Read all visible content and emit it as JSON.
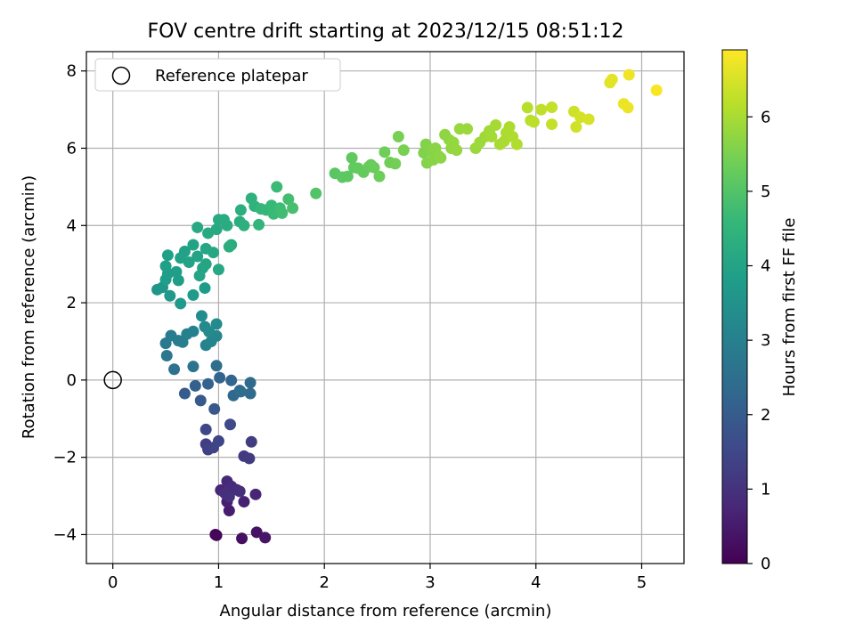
{
  "chart_data": {
    "type": "scatter",
    "title": "FOV centre drift starting at 2023/12/15 08:51:12",
    "xlabel": "Angular distance from reference (arcmin)",
    "ylabel": "Rotation from reference (arcmin)",
    "xlim": [
      -0.25,
      5.4
    ],
    "ylim": [
      -4.75,
      8.5
    ],
    "xticks": [
      0,
      1,
      2,
      3,
      4,
      5
    ],
    "yticks": [
      -4,
      -2,
      0,
      2,
      4,
      6,
      8
    ],
    "grid": true,
    "legend": {
      "placement": "upper-left",
      "entries": [
        "Reference platepar"
      ]
    },
    "reference_point": {
      "x": 0,
      "y": 0,
      "marker": "hollow-circle"
    },
    "colorbar": {
      "label": "Hours from first FF file",
      "colormap": "viridis",
      "range": [
        0,
        6.9
      ],
      "ticks": [
        0,
        1,
        2,
        3,
        4,
        5,
        6
      ]
    },
    "points": [
      {
        "x": 0.97,
        "y": -4.0,
        "c": 0.05
      },
      {
        "x": 0.98,
        "y": -4.02,
        "c": 0.1
      },
      {
        "x": 1.22,
        "y": -4.1,
        "c": 0.3
      },
      {
        "x": 1.36,
        "y": -3.94,
        "c": 0.35
      },
      {
        "x": 1.44,
        "y": -4.08,
        "c": 0.4
      },
      {
        "x": 1.1,
        "y": -3.38,
        "c": 0.55
      },
      {
        "x": 1.08,
        "y": -3.15,
        "c": 0.6
      },
      {
        "x": 1.24,
        "y": -3.15,
        "c": 0.65
      },
      {
        "x": 1.35,
        "y": -2.96,
        "c": 0.7
      },
      {
        "x": 1.02,
        "y": -2.85,
        "c": 0.75
      },
      {
        "x": 1.08,
        "y": -2.62,
        "c": 0.8
      },
      {
        "x": 1.12,
        "y": -2.75,
        "c": 0.85
      },
      {
        "x": 1.17,
        "y": -2.84,
        "c": 0.9
      },
      {
        "x": 1.2,
        "y": -2.88,
        "c": 0.92
      },
      {
        "x": 1.06,
        "y": -2.93,
        "c": 0.95
      },
      {
        "x": 1.1,
        "y": -3.02,
        "c": 0.97
      },
      {
        "x": 1.24,
        "y": -1.97,
        "c": 1.15
      },
      {
        "x": 1.29,
        "y": -2.03,
        "c": 1.2
      },
      {
        "x": 1.31,
        "y": -1.6,
        "c": 1.25
      },
      {
        "x": 0.88,
        "y": -1.66,
        "c": 1.3
      },
      {
        "x": 0.9,
        "y": -1.8,
        "c": 1.35
      },
      {
        "x": 0.95,
        "y": -1.75,
        "c": 1.4
      },
      {
        "x": 1.0,
        "y": -1.58,
        "c": 1.45
      },
      {
        "x": 0.88,
        "y": -1.28,
        "c": 1.5
      },
      {
        "x": 1.11,
        "y": -1.15,
        "c": 1.55
      },
      {
        "x": 0.96,
        "y": -0.75,
        "c": 1.9
      },
      {
        "x": 0.83,
        "y": -0.53,
        "c": 1.95
      },
      {
        "x": 0.68,
        "y": -0.35,
        "c": 2.0
      },
      {
        "x": 0.78,
        "y": -0.15,
        "c": 2.1
      },
      {
        "x": 0.9,
        "y": -0.1,
        "c": 2.15
      },
      {
        "x": 1.01,
        "y": 0.06,
        "c": 2.2
      },
      {
        "x": 1.12,
        "y": -0.01,
        "c": 2.25
      },
      {
        "x": 1.14,
        "y": -0.4,
        "c": 2.3
      },
      {
        "x": 1.2,
        "y": -0.27,
        "c": 2.35
      },
      {
        "x": 1.3,
        "y": -0.35,
        "c": 2.38
      },
      {
        "x": 1.3,
        "y": -0.07,
        "c": 2.4
      },
      {
        "x": 1.21,
        "y": -0.3,
        "c": 2.42
      },
      {
        "x": 0.98,
        "y": 0.37,
        "c": 2.5
      },
      {
        "x": 0.58,
        "y": 0.28,
        "c": 2.6
      },
      {
        "x": 0.76,
        "y": 0.35,
        "c": 2.65
      },
      {
        "x": 0.51,
        "y": 0.63,
        "c": 2.75
      },
      {
        "x": 0.5,
        "y": 0.95,
        "c": 2.8
      },
      {
        "x": 0.55,
        "y": 1.15,
        "c": 2.85
      },
      {
        "x": 0.62,
        "y": 1.02,
        "c": 2.9
      },
      {
        "x": 0.66,
        "y": 0.98,
        "c": 2.95
      },
      {
        "x": 0.7,
        "y": 1.19,
        "c": 3.0
      },
      {
        "x": 0.76,
        "y": 1.26,
        "c": 3.05
      },
      {
        "x": 0.88,
        "y": 0.9,
        "c": 3.1
      },
      {
        "x": 0.93,
        "y": 1.0,
        "c": 3.15
      },
      {
        "x": 0.98,
        "y": 1.14,
        "c": 3.2
      },
      {
        "x": 0.87,
        "y": 1.38,
        "c": 3.25
      },
      {
        "x": 0.91,
        "y": 1.25,
        "c": 3.28
      },
      {
        "x": 0.98,
        "y": 1.45,
        "c": 3.3
      },
      {
        "x": 0.84,
        "y": 1.66,
        "c": 3.35
      },
      {
        "x": 0.42,
        "y": 2.34,
        "c": 3.6
      },
      {
        "x": 0.47,
        "y": 2.4,
        "c": 3.65
      },
      {
        "x": 0.54,
        "y": 2.18,
        "c": 3.7
      },
      {
        "x": 0.64,
        "y": 1.98,
        "c": 3.72
      },
      {
        "x": 0.76,
        "y": 2.2,
        "c": 3.75
      },
      {
        "x": 0.87,
        "y": 2.38,
        "c": 3.78
      },
      {
        "x": 0.62,
        "y": 2.58,
        "c": 3.8
      },
      {
        "x": 0.5,
        "y": 2.6,
        "c": 3.82
      },
      {
        "x": 0.52,
        "y": 2.75,
        "c": 3.84
      },
      {
        "x": 0.6,
        "y": 2.8,
        "c": 3.86
      },
      {
        "x": 0.5,
        "y": 2.95,
        "c": 3.88
      },
      {
        "x": 0.52,
        "y": 3.23,
        "c": 3.9
      },
      {
        "x": 0.64,
        "y": 3.16,
        "c": 3.92
      },
      {
        "x": 0.68,
        "y": 3.33,
        "c": 3.94
      },
      {
        "x": 0.72,
        "y": 3.05,
        "c": 3.96
      },
      {
        "x": 0.76,
        "y": 3.5,
        "c": 3.98
      },
      {
        "x": 0.8,
        "y": 3.2,
        "c": 4.0
      },
      {
        "x": 0.85,
        "y": 2.9,
        "c": 4.02
      },
      {
        "x": 0.82,
        "y": 2.7,
        "c": 4.04
      },
      {
        "x": 0.88,
        "y": 3.0,
        "c": 4.06
      },
      {
        "x": 0.88,
        "y": 3.4,
        "c": 4.08
      },
      {
        "x": 0.95,
        "y": 3.3,
        "c": 4.1
      },
      {
        "x": 1.0,
        "y": 2.86,
        "c": 4.12
      },
      {
        "x": 0.8,
        "y": 3.95,
        "c": 4.14
      },
      {
        "x": 0.9,
        "y": 3.8,
        "c": 4.16
      },
      {
        "x": 0.98,
        "y": 3.9,
        "c": 4.18
      },
      {
        "x": 1.0,
        "y": 4.15,
        "c": 4.2
      },
      {
        "x": 1.05,
        "y": 4.15,
        "c": 4.22
      },
      {
        "x": 1.08,
        "y": 4.0,
        "c": 4.24
      },
      {
        "x": 1.12,
        "y": 3.5,
        "c": 4.26
      },
      {
        "x": 1.1,
        "y": 3.45,
        "c": 4.28
      },
      {
        "x": 1.2,
        "y": 4.1,
        "c": 4.3
      },
      {
        "x": 1.21,
        "y": 4.4,
        "c": 4.32
      },
      {
        "x": 1.24,
        "y": 4.0,
        "c": 4.34
      },
      {
        "x": 1.31,
        "y": 4.7,
        "c": 4.4
      },
      {
        "x": 1.34,
        "y": 4.5,
        "c": 4.45
      },
      {
        "x": 1.38,
        "y": 4.02,
        "c": 4.5
      },
      {
        "x": 1.4,
        "y": 4.43,
        "c": 4.55
      },
      {
        "x": 1.45,
        "y": 4.4,
        "c": 4.6
      },
      {
        "x": 1.5,
        "y": 4.52,
        "c": 4.62
      },
      {
        "x": 1.52,
        "y": 4.3,
        "c": 4.65
      },
      {
        "x": 1.55,
        "y": 5.0,
        "c": 4.7
      },
      {
        "x": 1.58,
        "y": 4.45,
        "c": 4.72
      },
      {
        "x": 1.6,
        "y": 4.32,
        "c": 4.75
      },
      {
        "x": 1.66,
        "y": 4.68,
        "c": 4.8
      },
      {
        "x": 1.7,
        "y": 4.45,
        "c": 4.85
      },
      {
        "x": 1.92,
        "y": 4.83,
        "c": 5.0
      },
      {
        "x": 2.1,
        "y": 5.35,
        "c": 5.1
      },
      {
        "x": 2.17,
        "y": 5.25,
        "c": 5.12
      },
      {
        "x": 2.22,
        "y": 5.27,
        "c": 5.14
      },
      {
        "x": 2.26,
        "y": 5.75,
        "c": 5.18
      },
      {
        "x": 2.28,
        "y": 5.5,
        "c": 5.2
      },
      {
        "x": 2.32,
        "y": 5.48,
        "c": 5.22
      },
      {
        "x": 2.37,
        "y": 5.38,
        "c": 5.24
      },
      {
        "x": 2.42,
        "y": 5.52,
        "c": 5.26
      },
      {
        "x": 2.44,
        "y": 5.57,
        "c": 5.28
      },
      {
        "x": 2.47,
        "y": 5.5,
        "c": 5.3
      },
      {
        "x": 2.52,
        "y": 5.27,
        "c": 5.32
      },
      {
        "x": 2.57,
        "y": 5.9,
        "c": 5.36
      },
      {
        "x": 2.62,
        "y": 5.63,
        "c": 5.38
      },
      {
        "x": 2.67,
        "y": 5.6,
        "c": 5.4
      },
      {
        "x": 2.7,
        "y": 6.3,
        "c": 5.45
      },
      {
        "x": 2.75,
        "y": 5.95,
        "c": 5.48
      },
      {
        "x": 2.94,
        "y": 5.88,
        "c": 5.55
      },
      {
        "x": 2.96,
        "y": 6.1,
        "c": 5.58
      },
      {
        "x": 2.97,
        "y": 5.62,
        "c": 5.6
      },
      {
        "x": 3.0,
        "y": 5.95,
        "c": 5.62
      },
      {
        "x": 3.03,
        "y": 5.7,
        "c": 5.64
      },
      {
        "x": 3.05,
        "y": 6.0,
        "c": 5.66
      },
      {
        "x": 3.08,
        "y": 5.8,
        "c": 5.68
      },
      {
        "x": 3.1,
        "y": 5.75,
        "c": 5.7
      },
      {
        "x": 3.14,
        "y": 6.35,
        "c": 5.72
      },
      {
        "x": 3.18,
        "y": 6.22,
        "c": 5.74
      },
      {
        "x": 3.2,
        "y": 6.0,
        "c": 5.76
      },
      {
        "x": 3.22,
        "y": 6.15,
        "c": 5.78
      },
      {
        "x": 3.25,
        "y": 5.95,
        "c": 5.8
      },
      {
        "x": 3.28,
        "y": 6.5,
        "c": 5.82
      },
      {
        "x": 3.35,
        "y": 6.5,
        "c": 5.84
      },
      {
        "x": 3.43,
        "y": 6.0,
        "c": 5.86
      },
      {
        "x": 3.47,
        "y": 6.15,
        "c": 5.88
      },
      {
        "x": 3.52,
        "y": 6.3,
        "c": 5.9
      },
      {
        "x": 3.56,
        "y": 6.45,
        "c": 5.92
      },
      {
        "x": 3.58,
        "y": 6.3,
        "c": 5.94
      },
      {
        "x": 3.62,
        "y": 6.6,
        "c": 5.96
      },
      {
        "x": 3.66,
        "y": 6.1,
        "c": 5.98
      },
      {
        "x": 3.7,
        "y": 6.18,
        "c": 6.0
      },
      {
        "x": 3.72,
        "y": 6.4,
        "c": 6.02
      },
      {
        "x": 3.75,
        "y": 6.55,
        "c": 6.04
      },
      {
        "x": 3.78,
        "y": 6.3,
        "c": 6.06
      },
      {
        "x": 3.82,
        "y": 6.1,
        "c": 6.08
      },
      {
        "x": 3.92,
        "y": 7.05,
        "c": 6.15
      },
      {
        "x": 3.95,
        "y": 6.72,
        "c": 6.18
      },
      {
        "x": 3.98,
        "y": 6.68,
        "c": 6.2
      },
      {
        "x": 4.05,
        "y": 7.0,
        "c": 6.24
      },
      {
        "x": 4.15,
        "y": 7.06,
        "c": 6.28
      },
      {
        "x": 4.15,
        "y": 6.62,
        "c": 6.3
      },
      {
        "x": 4.36,
        "y": 6.95,
        "c": 6.4
      },
      {
        "x": 4.38,
        "y": 6.55,
        "c": 6.42
      },
      {
        "x": 4.42,
        "y": 6.8,
        "c": 6.45
      },
      {
        "x": 4.5,
        "y": 6.75,
        "c": 6.48
      },
      {
        "x": 4.7,
        "y": 7.7,
        "c": 6.6
      },
      {
        "x": 4.72,
        "y": 7.78,
        "c": 6.62
      },
      {
        "x": 4.83,
        "y": 7.15,
        "c": 6.7
      },
      {
        "x": 4.87,
        "y": 7.05,
        "c": 6.72
      },
      {
        "x": 4.88,
        "y": 7.9,
        "c": 6.75
      },
      {
        "x": 5.14,
        "y": 7.5,
        "c": 6.85
      }
    ]
  }
}
